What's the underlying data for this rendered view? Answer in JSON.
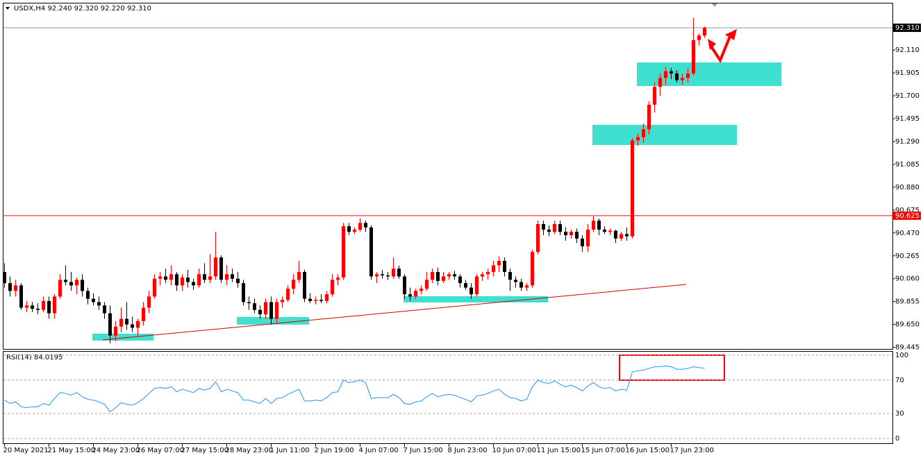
{
  "chart_data": [
    {
      "type": "candlestick",
      "title": "USDX,H4  92.240 92.320 92.220 92.310",
      "up_color": "#ff0000",
      "down_color": "#000000",
      "ylim": [
        89.43,
        92.528
      ],
      "yticks": [
        {
          "value": 92.11,
          "label": "92.110"
        },
        91.905,
        {
          "value": 91.7,
          "label": "91.700"
        },
        91.495,
        {
          "value": 91.29,
          "label": "91.290"
        },
        91.085,
        {
          "value": 90.88,
          "label": "90.880"
        },
        90.675,
        {
          "value": 90.47,
          "label": "90.470"
        },
        90.265,
        {
          "value": 90.06,
          "label": "90.060"
        },
        89.855,
        {
          "value": 89.65,
          "label": "89.650"
        },
        89.445
      ],
      "price_line": {
        "value": 92.31,
        "label": "92.310"
      },
      "level_line": {
        "value": 90.625,
        "label": "90.625"
      },
      "categories": [
        "20 May 2021",
        null,
        null,
        null,
        null,
        null,
        null,
        null,
        "21 May 15:00",
        null,
        null,
        null,
        null,
        null,
        null,
        null,
        "24 May 23:00",
        null,
        null,
        null,
        null,
        null,
        null,
        null,
        "26 May 07:00",
        null,
        null,
        null,
        null,
        null,
        null,
        null,
        "27 May 15:00",
        null,
        null,
        null,
        null,
        null,
        null,
        null,
        "28 May 23:00",
        null,
        null,
        null,
        null,
        null,
        null,
        null,
        "1 Jun 11:00",
        null,
        null,
        null,
        null,
        null,
        null,
        null,
        "2 Jun 19:00",
        null,
        null,
        null,
        null,
        null,
        null,
        null,
        "4 Jun 07:00",
        null,
        null,
        null,
        null,
        null,
        null,
        null,
        "7 Jun 15:00",
        null,
        null,
        null,
        null,
        null,
        null,
        null,
        "8 Jun 23:00",
        null,
        null,
        null,
        null,
        null,
        null,
        null,
        "10 Jun 07:00",
        null,
        null,
        null,
        null,
        null,
        null,
        null,
        "11 Jun 15:00",
        null,
        null,
        null,
        null,
        null,
        null,
        null,
        "15 Jun 07:00",
        null,
        null,
        null,
        null,
        null,
        null,
        null,
        "16 Jun 15:00",
        null,
        null,
        null,
        null,
        null,
        null,
        null,
        "17 Jun 23:00",
        null,
        null,
        null,
        null,
        null,
        null
      ],
      "candles": [
        [
          90.12,
          90.2,
          89.98,
          90.02
        ],
        [
          90.02,
          90.08,
          89.9,
          89.95
        ],
        [
          89.95,
          90.05,
          89.9,
          90.0
        ],
        [
          90.0,
          90.02,
          89.78,
          89.8
        ],
        [
          89.8,
          89.86,
          89.76,
          89.82
        ],
        [
          89.82,
          89.85,
          89.76,
          89.79
        ],
        [
          89.79,
          89.84,
          89.74,
          89.78
        ],
        [
          89.78,
          89.9,
          89.76,
          89.86
        ],
        [
          89.86,
          89.9,
          89.7,
          89.75
        ],
        [
          89.75,
          89.92,
          89.7,
          89.9
        ],
        [
          89.9,
          90.1,
          89.88,
          90.05
        ],
        [
          90.05,
          90.18,
          90.0,
          90.03
        ],
        [
          90.03,
          90.12,
          89.95,
          90.0
        ],
        [
          90.0,
          90.07,
          89.92,
          90.05
        ],
        [
          90.05,
          90.1,
          89.9,
          89.95
        ],
        [
          89.95,
          89.98,
          89.83,
          89.88
        ],
        [
          89.88,
          89.93,
          89.82,
          89.85
        ],
        [
          89.85,
          89.9,
          89.78,
          89.82
        ],
        [
          89.82,
          89.85,
          89.7,
          89.75
        ],
        [
          89.75,
          89.82,
          89.48,
          89.55
        ],
        [
          89.55,
          89.68,
          89.5,
          89.63
        ],
        [
          89.63,
          89.8,
          89.58,
          89.7
        ],
        [
          89.7,
          89.85,
          89.6,
          89.65
        ],
        [
          89.65,
          89.72,
          89.58,
          89.62
        ],
        [
          89.62,
          89.7,
          89.55,
          89.68
        ],
        [
          89.68,
          89.85,
          89.64,
          89.8
        ],
        [
          89.8,
          89.95,
          89.75,
          89.9
        ],
        [
          89.9,
          90.1,
          89.88,
          90.06
        ],
        [
          90.06,
          90.12,
          90.0,
          90.08
        ],
        [
          90.08,
          90.15,
          90.02,
          90.05
        ],
        [
          90.05,
          90.18,
          90.0,
          90.1
        ],
        [
          90.1,
          90.12,
          89.95,
          90.0
        ],
        [
          90.0,
          90.1,
          89.95,
          90.07
        ],
        [
          90.07,
          90.14,
          89.98,
          90.03
        ],
        [
          90.03,
          90.06,
          89.96,
          90.0
        ],
        [
          90.0,
          90.15,
          89.98,
          90.1
        ],
        [
          90.1,
          90.2,
          90.02,
          90.05
        ],
        [
          90.05,
          90.28,
          90.02,
          90.08
        ],
        [
          90.08,
          90.48,
          90.05,
          90.25
        ],
        [
          90.25,
          90.27,
          90.02,
          90.05
        ],
        [
          90.05,
          90.18,
          90.0,
          90.1
        ],
        [
          90.1,
          90.15,
          90.03,
          90.06
        ],
        [
          90.06,
          90.12,
          89.98,
          90.02
        ],
        [
          90.02,
          90.05,
          89.82,
          89.85
        ],
        [
          89.85,
          89.9,
          89.78,
          89.84
        ],
        [
          89.84,
          89.88,
          89.75,
          89.78
        ],
        [
          89.78,
          89.82,
          89.7,
          89.74
        ],
        [
          89.74,
          89.88,
          89.7,
          89.85
        ],
        [
          89.85,
          89.9,
          89.65,
          89.7
        ],
        [
          89.7,
          89.88,
          89.66,
          89.85
        ],
        [
          89.85,
          89.9,
          89.8,
          89.87
        ],
        [
          89.87,
          90.0,
          89.85,
          89.97
        ],
        [
          89.97,
          90.1,
          89.92,
          90.05
        ],
        [
          90.05,
          90.22,
          90.02,
          90.12
        ],
        [
          90.12,
          90.14,
          89.85,
          89.88
        ],
        [
          89.88,
          89.93,
          89.84,
          89.86
        ],
        [
          89.86,
          89.9,
          89.83,
          89.87
        ],
        [
          89.87,
          89.92,
          89.84,
          89.86
        ],
        [
          89.86,
          89.95,
          89.84,
          89.92
        ],
        [
          89.92,
          90.1,
          89.9,
          90.05
        ],
        [
          90.05,
          90.1,
          90.0,
          90.07
        ],
        [
          90.07,
          90.56,
          90.05,
          90.53
        ],
        [
          90.53,
          90.56,
          90.45,
          90.48
        ],
        [
          90.48,
          90.52,
          90.46,
          90.5
        ],
        [
          90.5,
          90.6,
          90.48,
          90.56
        ],
        [
          90.56,
          90.58,
          90.48,
          90.52
        ],
        [
          90.52,
          90.54,
          90.05,
          90.08
        ],
        [
          90.08,
          90.12,
          90.02,
          90.1
        ],
        [
          90.1,
          90.14,
          90.06,
          90.09
        ],
        [
          90.09,
          90.12,
          90.05,
          90.08
        ],
        [
          90.08,
          90.25,
          90.06,
          90.15
        ],
        [
          90.15,
          90.18,
          90.06,
          90.08
        ],
        [
          90.08,
          90.1,
          89.88,
          89.92
        ],
        [
          89.92,
          89.98,
          89.86,
          89.9
        ],
        [
          89.9,
          89.97,
          89.88,
          89.95
        ],
        [
          89.95,
          90.0,
          89.92,
          89.97
        ],
        [
          89.97,
          90.12,
          89.95,
          90.05
        ],
        [
          90.05,
          90.15,
          90.02,
          90.12
        ],
        [
          90.12,
          90.16,
          90.0,
          90.04
        ],
        [
          90.04,
          90.12,
          90.02,
          90.08
        ],
        [
          90.08,
          90.12,
          90.05,
          90.1
        ],
        [
          90.1,
          90.13,
          90.05,
          90.08
        ],
        [
          90.08,
          90.1,
          89.98,
          90.02
        ],
        [
          90.02,
          90.05,
          89.96,
          89.98
        ],
        [
          89.98,
          90.02,
          89.88,
          89.92
        ],
        [
          89.92,
          90.1,
          89.9,
          90.08
        ],
        [
          90.08,
          90.12,
          90.04,
          90.1
        ],
        [
          90.1,
          90.15,
          90.05,
          90.12
        ],
        [
          90.12,
          90.22,
          90.08,
          90.18
        ],
        [
          90.18,
          90.26,
          90.12,
          90.22
        ],
        [
          90.22,
          90.25,
          90.08,
          90.12
        ],
        [
          90.12,
          90.15,
          89.95,
          90.05
        ],
        [
          90.05,
          90.08,
          89.98,
          90.03
        ],
        [
          90.03,
          90.06,
          89.95,
          89.98
        ],
        [
          89.98,
          90.02,
          89.95,
          90.0
        ],
        [
          90.0,
          90.32,
          89.98,
          90.3
        ],
        [
          90.3,
          90.58,
          90.28,
          90.55
        ],
        [
          90.55,
          90.58,
          90.45,
          90.5
        ],
        [
          90.5,
          90.54,
          90.44,
          90.48
        ],
        [
          90.48,
          90.58,
          90.46,
          90.55
        ],
        [
          90.55,
          90.58,
          90.45,
          90.48
        ],
        [
          90.48,
          90.52,
          90.4,
          90.45
        ],
        [
          90.45,
          90.5,
          90.42,
          90.48
        ],
        [
          90.48,
          90.51,
          90.38,
          90.42
        ],
        [
          90.42,
          90.45,
          90.3,
          90.35
        ],
        [
          90.35,
          90.55,
          90.3,
          90.5
        ],
        [
          90.5,
          90.62,
          90.48,
          90.58
        ],
        [
          90.58,
          90.6,
          90.45,
          90.5
        ],
        [
          90.5,
          90.53,
          90.46,
          90.48
        ],
        [
          90.48,
          90.51,
          90.45,
          90.49
        ],
        [
          90.49,
          90.5,
          90.38,
          90.42
        ],
        [
          90.42,
          90.48,
          90.4,
          90.46
        ],
        [
          90.46,
          90.52,
          90.4,
          90.44
        ],
        [
          90.44,
          91.32,
          90.42,
          91.3
        ],
        [
          91.3,
          91.36,
          91.25,
          91.33
        ],
        [
          91.33,
          91.45,
          91.28,
          91.4
        ],
        [
          91.4,
          91.65,
          91.35,
          91.62
        ],
        [
          91.62,
          91.82,
          91.55,
          91.78
        ],
        [
          91.78,
          91.9,
          91.7,
          91.86
        ],
        [
          91.86,
          91.96,
          91.8,
          91.92
        ],
        [
          91.92,
          91.95,
          91.85,
          91.9
        ],
        [
          91.9,
          91.93,
          91.82,
          91.84
        ],
        [
          91.84,
          91.9,
          91.8,
          91.86
        ],
        [
          91.86,
          91.95,
          91.82,
          91.9
        ],
        [
          91.9,
          92.4,
          91.88,
          92.2
        ],
        [
          92.2,
          92.26,
          92.15,
          92.24
        ],
        [
          92.24,
          92.32,
          92.22,
          92.31
        ]
      ]
    },
    {
      "type": "line",
      "title": "RSI(14) 84.0195",
      "color": "#1e90ff",
      "ylim": [
        -6.5,
        104
      ],
      "yticks": [
        100,
        70,
        30,
        0
      ],
      "values": [
        46,
        42,
        44,
        38,
        37,
        38,
        38,
        42,
        40,
        48,
        55,
        54,
        52,
        55,
        50,
        47,
        46,
        44,
        41,
        32,
        37,
        43,
        41,
        40,
        43,
        48,
        54,
        60,
        61,
        60,
        62,
        56,
        59,
        57,
        55,
        60,
        58,
        60,
        68,
        56,
        59,
        57,
        55,
        46,
        46,
        44,
        42,
        48,
        42,
        48,
        49,
        53,
        56,
        59,
        45,
        45,
        46,
        45,
        49,
        55,
        56,
        70,
        67,
        68,
        70,
        67,
        48,
        49,
        49,
        49,
        53,
        49,
        42,
        41,
        44,
        45,
        50,
        54,
        50,
        52,
        53,
        52,
        49,
        47,
        44,
        51,
        52,
        54,
        57,
        59,
        53,
        49,
        48,
        45,
        47,
        62,
        70,
        67,
        66,
        69,
        65,
        62,
        64,
        61,
        57,
        63,
        67,
        62,
        60,
        61,
        57,
        59,
        58,
        80,
        81,
        82,
        84,
        86,
        86,
        87,
        86,
        83,
        83,
        84,
        86,
        85,
        84.0195
      ]
    }
  ]
}
